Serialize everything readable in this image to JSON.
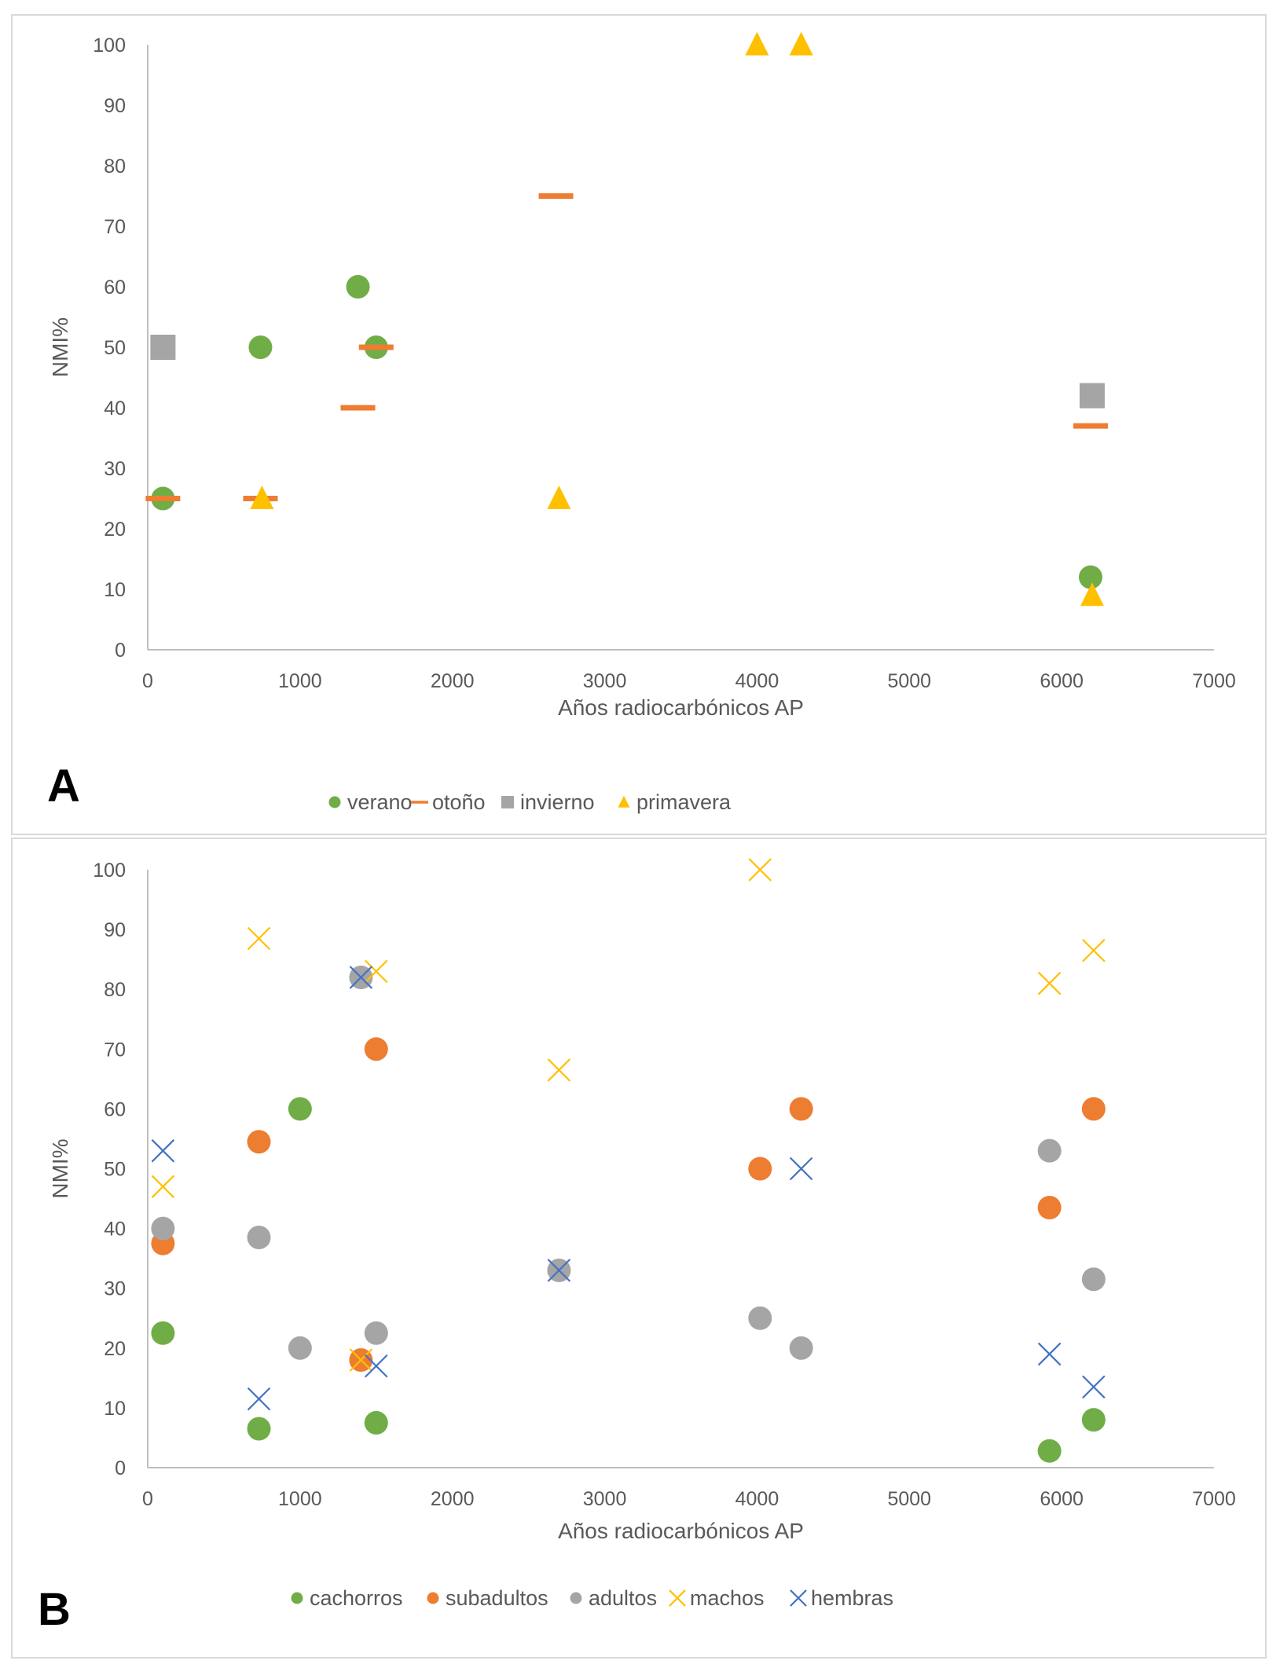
{
  "figure": {
    "panels": [
      {
        "letter": "A"
      },
      {
        "letter": "B"
      }
    ]
  },
  "chart_data": [
    {
      "type": "scatter",
      "panel": "A",
      "title": "",
      "xlabel": "Años radiocarbónicos AP",
      "ylabel": "NMI%",
      "xlim": [
        0,
        7000
      ],
      "ylim": [
        0,
        100
      ],
      "xticks": [
        0,
        1000,
        2000,
        3000,
        4000,
        5000,
        6000,
        7000
      ],
      "yticks": [
        0,
        10,
        20,
        30,
        40,
        50,
        60,
        70,
        80,
        90,
        100
      ],
      "grid": false,
      "legend_position": "bottom",
      "series": [
        {
          "name": "verano",
          "marker": "circle",
          "color": "#70ad47",
          "points": [
            [
              100,
              25
            ],
            [
              740,
              50
            ],
            [
              1380,
              60
            ],
            [
              1500,
              50
            ],
            [
              6190,
              12
            ]
          ]
        },
        {
          "name": "otoño",
          "marker": "dash",
          "color": "#ed7d31",
          "points": [
            [
              100,
              25
            ],
            [
              740,
              25
            ],
            [
              1380,
              40
            ],
            [
              1500,
              50
            ],
            [
              2680,
              75
            ],
            [
              6190,
              37
            ]
          ]
        },
        {
          "name": "invierno",
          "marker": "square",
          "color": "#a5a5a5",
          "points": [
            [
              100,
              50
            ],
            [
              6200,
              42
            ]
          ]
        },
        {
          "name": "primavera",
          "marker": "triangle",
          "color": "#ffc000",
          "points": [
            [
              750,
              25
            ],
            [
              2700,
              25
            ],
            [
              4000,
              100
            ],
            [
              4290,
              100
            ],
            [
              6200,
              9
            ]
          ]
        }
      ]
    },
    {
      "type": "scatter",
      "panel": "B",
      "title": "",
      "xlabel": "Años radiocarbónicos AP",
      "ylabel": "NMI%",
      "xlim": [
        0,
        7000
      ],
      "ylim": [
        0,
        100
      ],
      "xticks": [
        0,
        1000,
        2000,
        3000,
        4000,
        5000,
        6000,
        7000
      ],
      "yticks": [
        0,
        10,
        20,
        30,
        40,
        50,
        60,
        70,
        80,
        90,
        100
      ],
      "grid": false,
      "legend_position": "bottom",
      "series": [
        {
          "name": "cachorros",
          "marker": "circle",
          "color": "#70ad47",
          "points": [
            [
              100,
              22.5
            ],
            [
              730,
              6.5
            ],
            [
              1000,
              60
            ],
            [
              1500,
              7.5
            ],
            [
              5920,
              2.8
            ],
            [
              6210,
              8
            ]
          ]
        },
        {
          "name": "subadultos",
          "marker": "circle",
          "color": "#ed7d31",
          "points": [
            [
              100,
              37.5
            ],
            [
              730,
              54.5
            ],
            [
              1400,
              18
            ],
            [
              1500,
              70
            ],
            [
              4020,
              50
            ],
            [
              4290,
              60
            ],
            [
              5920,
              43.5
            ],
            [
              6210,
              60
            ]
          ]
        },
        {
          "name": "adultos",
          "marker": "circle",
          "color": "#a5a5a5",
          "points": [
            [
              100,
              40
            ],
            [
              730,
              38.5
            ],
            [
              1000,
              20
            ],
            [
              1400,
              82
            ],
            [
              1500,
              22.5
            ],
            [
              2700,
              33
            ],
            [
              4020,
              25
            ],
            [
              4290,
              20
            ],
            [
              5920,
              53
            ],
            [
              6210,
              31.5
            ]
          ]
        },
        {
          "name": "machos",
          "marker": "x",
          "color": "#ffc000",
          "points": [
            [
              100,
              47
            ],
            [
              730,
              88.5
            ],
            [
              1400,
              18
            ],
            [
              1500,
              83
            ],
            [
              2700,
              66.5
            ],
            [
              4020,
              100
            ],
            [
              5920,
              81
            ],
            [
              6210,
              86.5
            ]
          ]
        },
        {
          "name": "hembras",
          "marker": "x",
          "color": "#4472c4",
          "points": [
            [
              100,
              53
            ],
            [
              730,
              11.5
            ],
            [
              1400,
              82
            ],
            [
              1500,
              17
            ],
            [
              2700,
              33
            ],
            [
              4290,
              50
            ],
            [
              5920,
              19
            ],
            [
              6210,
              13.5
            ]
          ]
        }
      ]
    }
  ]
}
